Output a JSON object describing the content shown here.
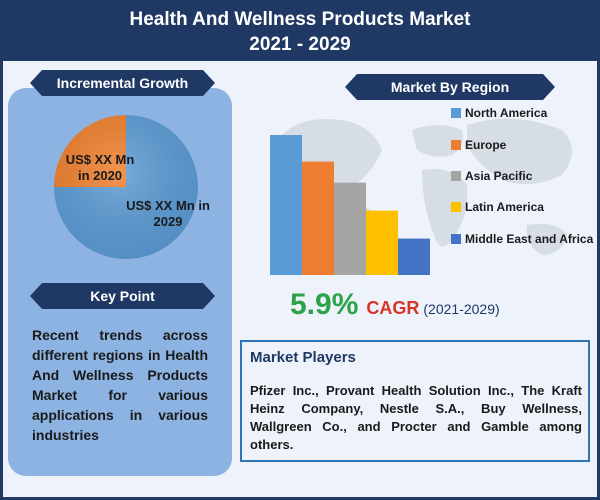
{
  "header": {
    "title_line1": "Health And Wellness Products Market",
    "title_line2": "2021 - 2029"
  },
  "incremental_growth": {
    "heading": "Incremental Growth",
    "label_2020": "US$ XX Mn in 2020",
    "label_2029": "US$ XX Mn in 2029"
  },
  "key_point": {
    "heading": "Key Point",
    "text": "Recent trends across different regions in Health And Wellness Products Market for various applications in various industries"
  },
  "market_by_region": {
    "heading": "Market By Region"
  },
  "cagr": {
    "value": "5.9%",
    "label": "CAGR",
    "period": "(2021-2029)"
  },
  "market_players": {
    "heading": "Market Players",
    "text": "Pfizer Inc., Provant Health Solution Inc., The Kraft Heinz Company, Nestle S.A., Buy Wellness, Wallgreen Co., and Procter and Gamble among others."
  },
  "chart_data": [
    {
      "type": "pie",
      "labels": [
        "US$ XX Mn in 2020",
        "US$ XX Mn in 2029"
      ],
      "values": [
        25,
        75
      ],
      "colors": [
        "#f07f2c",
        "#5b9bd5"
      ]
    },
    {
      "type": "bar",
      "categories": [
        "North America",
        "Europe",
        "Asia Pacific",
        "Latin America",
        "Middle East and Africa"
      ],
      "values": [
        100,
        81,
        66,
        46,
        26
      ],
      "colors": [
        "#5b9bd5",
        "#ed7d31",
        "#a5a5a5",
        "#ffc000",
        "#4472c4"
      ],
      "legend_position": "right",
      "grid": false
    }
  ]
}
